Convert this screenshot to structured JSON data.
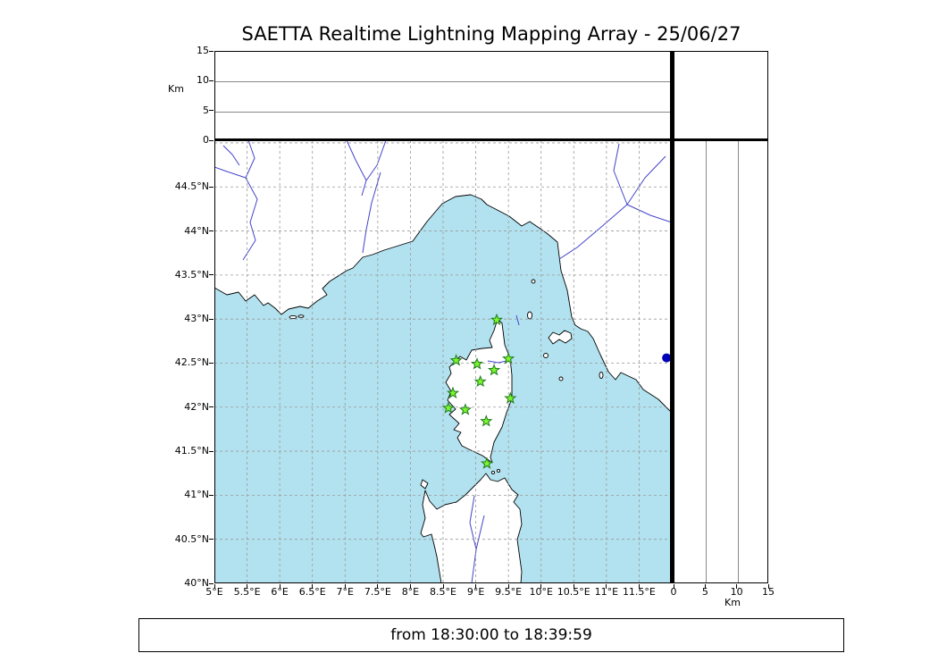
{
  "title": "SAETTA Realtime Lightning Mapping Array - 25/06/27",
  "footer": {
    "time_range": "from 18:30:00 to 18:39:59"
  },
  "colors": {
    "sea": "#b2e2ef",
    "land": "#ffffff",
    "coast": "#000000",
    "river": "#4444cc",
    "grid": "#999999",
    "panel_grid": "#888888",
    "station_fill": "#7cf62c",
    "station_edge": "#1e7a1e",
    "event_dot": "#0000b8"
  },
  "altitude_panel": {
    "axis_label": "Km",
    "range_km": [
      0,
      15
    ],
    "gridlines_km": [
      5,
      10
    ],
    "ticks": [
      {
        "value": 0,
        "label": "0"
      },
      {
        "value": 5,
        "label": "5"
      },
      {
        "value": 10,
        "label": "10"
      },
      {
        "value": 15,
        "label": "15"
      }
    ]
  },
  "right_panel": {
    "axis_label": "Km",
    "range_km": [
      0,
      15
    ],
    "gridlines_km": [
      5,
      10
    ],
    "ticks": [
      {
        "value": 0,
        "label": "0"
      },
      {
        "value": 5,
        "label": "5"
      },
      {
        "value": 10,
        "label": "10"
      },
      {
        "value": 15,
        "label": "15"
      }
    ]
  },
  "map_panel": {
    "lon_range": [
      5,
      12
    ],
    "lat_range": [
      40,
      45.03
    ],
    "grid_step_deg": 0.5,
    "lon_ticks": [
      {
        "value": 5,
        "label": "5°E"
      },
      {
        "value": 5.5,
        "label": "5.5°E"
      },
      {
        "value": 6,
        "label": "6°E"
      },
      {
        "value": 6.5,
        "label": "6.5°E"
      },
      {
        "value": 7,
        "label": "7°E"
      },
      {
        "value": 7.5,
        "label": "7.5°E"
      },
      {
        "value": 8,
        "label": "8°E"
      },
      {
        "value": 8.5,
        "label": "8.5°E"
      },
      {
        "value": 9,
        "label": "9°E"
      },
      {
        "value": 9.5,
        "label": "9.5°E"
      },
      {
        "value": 10,
        "label": "10°E"
      },
      {
        "value": 10.5,
        "label": "10.5°E"
      },
      {
        "value": 11,
        "label": "11°E"
      },
      {
        "value": 11.5,
        "label": "11.5°E"
      }
    ],
    "lat_ticks": [
      {
        "value": 44.5,
        "label": "44.5°N"
      },
      {
        "value": 44,
        "label": "44°N"
      },
      {
        "value": 43.5,
        "label": "43.5°N"
      },
      {
        "value": 43,
        "label": "43°N"
      },
      {
        "value": 42.5,
        "label": "42.5°N"
      },
      {
        "value": 42,
        "label": "42°N"
      },
      {
        "value": 41.5,
        "label": "41.5°N"
      },
      {
        "value": 41,
        "label": "41°N"
      },
      {
        "value": 40.5,
        "label": "40.5°N"
      },
      {
        "value": 40,
        "label": "40°N"
      }
    ]
  },
  "chart_data": {
    "type": "scatter",
    "title": "SAETTA Realtime Lightning Mapping Array - 25/06/27",
    "time_window": "from 18:30:00 to 18:39:59",
    "panels": [
      {
        "name": "altitude-vs-longitude",
        "ylabel": "Km",
        "ylim": [
          0,
          15
        ],
        "gridlines": [
          5,
          10
        ],
        "points": []
      },
      {
        "name": "geographic-map",
        "xlim_lon": [
          5,
          12
        ],
        "ylim_lat": [
          40,
          45.03
        ],
        "grid": "dashed 0.5 deg"
      },
      {
        "name": "altitude-vs-latitude",
        "xlabel": "Km",
        "xlim": [
          0,
          15
        ],
        "gridlines": [
          5,
          10
        ],
        "points": []
      },
      {
        "name": "top-right-aux-panel",
        "points": []
      }
    ],
    "stations": [
      {
        "lon": 9.32,
        "lat": 42.99
      },
      {
        "lon": 8.7,
        "lat": 42.53
      },
      {
        "lon": 9.02,
        "lat": 42.49
      },
      {
        "lon": 9.5,
        "lat": 42.55
      },
      {
        "lon": 9.28,
        "lat": 42.42
      },
      {
        "lon": 9.07,
        "lat": 42.29
      },
      {
        "lon": 8.65,
        "lat": 42.16
      },
      {
        "lon": 9.53,
        "lat": 42.1
      },
      {
        "lon": 8.58,
        "lat": 41.99
      },
      {
        "lon": 8.84,
        "lat": 41.97
      },
      {
        "lon": 9.16,
        "lat": 41.84
      },
      {
        "lon": 9.17,
        "lat": 41.36
      }
    ],
    "events": [
      {
        "lon": 11.92,
        "lat": 42.56
      }
    ]
  }
}
